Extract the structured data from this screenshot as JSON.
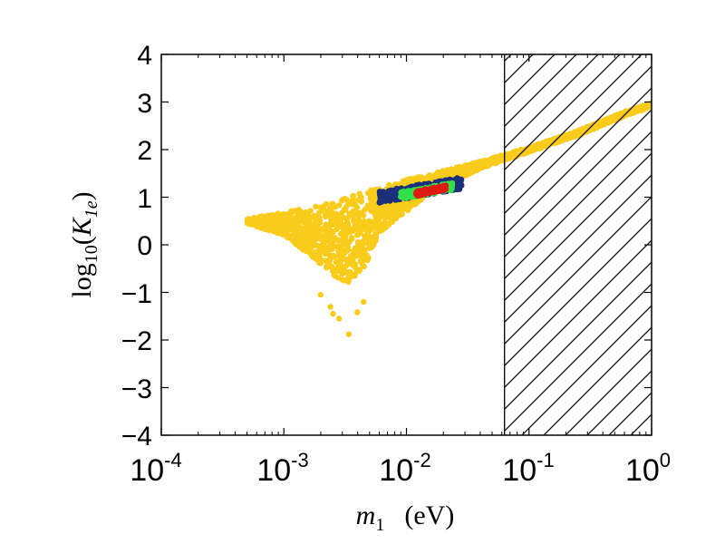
{
  "chart_data": {
    "type": "scatter",
    "title": "",
    "x_scale": "log",
    "xlim_exp": [
      -4,
      0
    ],
    "ylim": [
      -4,
      4
    ],
    "x_ticks": [
      {
        "base": "10",
        "exp": "-4"
      },
      {
        "base": "10",
        "exp": "-3"
      },
      {
        "base": "10",
        "exp": "-2"
      },
      {
        "base": "10",
        "exp": "-1"
      },
      {
        "base": "10",
        "exp": "0"
      }
    ],
    "y_ticks": [
      "4",
      "3",
      "2",
      "1",
      "0",
      "−1",
      "−2",
      "−3",
      "−4"
    ],
    "xlabel": {
      "var": "m",
      "sub": "1",
      "unit": "(eV)"
    },
    "ylabel": {
      "fn": "log",
      "fn_sub": "10",
      "var": "K",
      "var_sub": "1e"
    },
    "excluded_region": {
      "x_min_log10": -1.2,
      "x_max_log10": 0,
      "style": "hatched"
    },
    "series": [
      {
        "name": "all points",
        "color": "#f9cb1b",
        "description_points_log10m1_vs_log10K": {
          "upper_edge": [
            [
              -3.3,
              0.55
            ],
            [
              -3.0,
              0.68
            ],
            [
              -2.6,
              0.9
            ],
            [
              -2.2,
              1.25
            ],
            [
              -1.8,
              1.5
            ],
            [
              -1.4,
              1.75
            ],
            [
              -1.0,
              2.05
            ],
            [
              -0.6,
              2.4
            ],
            [
              -0.2,
              2.82
            ],
            [
              0.0,
              2.98
            ]
          ],
          "lower_edge": [
            [
              -3.3,
              0.45
            ],
            [
              -3.0,
              0.2
            ],
            [
              -2.7,
              -0.4
            ],
            [
              -2.5,
              -0.85
            ],
            [
              -2.35,
              -0.5
            ],
            [
              -2.2,
              0.3
            ],
            [
              -1.8,
              1.1
            ],
            [
              -1.4,
              1.6
            ],
            [
              -1.0,
              1.95
            ],
            [
              -0.6,
              2.3
            ],
            [
              -0.2,
              2.72
            ],
            [
              0.0,
              2.9
            ]
          ],
          "outliers": [
            [
              -2.62,
              -1.3
            ],
            [
              -2.47,
              -1.88
            ],
            [
              -2.55,
              -1.55
            ],
            [
              -2.6,
              -1.45
            ],
            [
              -2.4,
              -1.42
            ],
            [
              -2.35,
              -1.2
            ],
            [
              -2.7,
              -1.05
            ]
          ]
        }
      },
      {
        "name": "navy region",
        "color": "#1c2f7a",
        "log10m1_range": [
          -2.22,
          -1.55
        ],
        "log10K_range": [
          0.88,
          1.42
        ]
      },
      {
        "name": "green region",
        "color": "#33e04a",
        "log10m1_range": [
          -2.05,
          -1.62
        ],
        "log10K_range": [
          0.95,
          1.32
        ]
      },
      {
        "name": "red region",
        "color": "#e01a12",
        "log10m1_range": [
          -1.92,
          -1.68
        ],
        "log10K_range": [
          1.02,
          1.26
        ]
      }
    ]
  }
}
